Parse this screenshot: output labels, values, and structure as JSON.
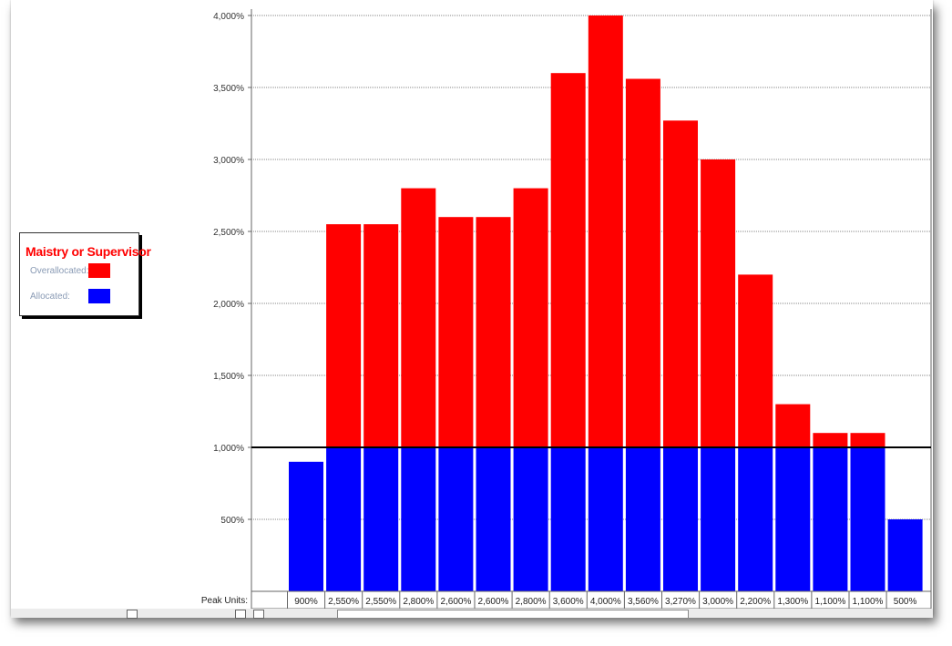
{
  "legend": {
    "title": "Maistry or Supervisor",
    "overallocated_label": "Overallocated:",
    "allocated_label": "Allocated:"
  },
  "colors": {
    "overallocated": "#ff0000",
    "allocated": "#0000ff",
    "gridline": "#888888",
    "max_line": "#000000"
  },
  "chart_data": {
    "type": "bar",
    "stacked": true,
    "ylim": [
      0,
      4000
    ],
    "yticks": [
      "500%",
      "1,000%",
      "1,500%",
      "2,000%",
      "2,500%",
      "3,000%",
      "3,500%",
      "4,000%"
    ],
    "ytick_values": [
      500,
      1000,
      1500,
      2000,
      2500,
      3000,
      3500,
      4000
    ],
    "max_units": 1000,
    "grid": true,
    "peak_units_label": "Peak Units:",
    "peak_units": [
      "900%",
      "2,550%",
      "2,550%",
      "2,800%",
      "2,600%",
      "2,600%",
      "2,800%",
      "3,600%",
      "4,000%",
      "3,560%",
      "3,270%",
      "3,000%",
      "2,200%",
      "1,300%",
      "1,100%",
      "1,100%",
      "500%"
    ],
    "values": [
      900,
      2550,
      2550,
      2800,
      2600,
      2600,
      2800,
      3600,
      4000,
      3560,
      3270,
      3000,
      2200,
      1300,
      1100,
      1100,
      500
    ],
    "series": [
      {
        "name": "Allocated:",
        "values": [
          900,
          1000,
          1000,
          1000,
          1000,
          1000,
          1000,
          1000,
          1000,
          1000,
          1000,
          1000,
          1000,
          1000,
          1000,
          1000,
          500
        ]
      },
      {
        "name": "Overallocated:",
        "values": [
          0,
          1550,
          1550,
          1800,
          1600,
          1600,
          1800,
          2600,
          3000,
          2560,
          2270,
          2000,
          1200,
          300,
          100,
          100,
          0
        ]
      }
    ]
  }
}
